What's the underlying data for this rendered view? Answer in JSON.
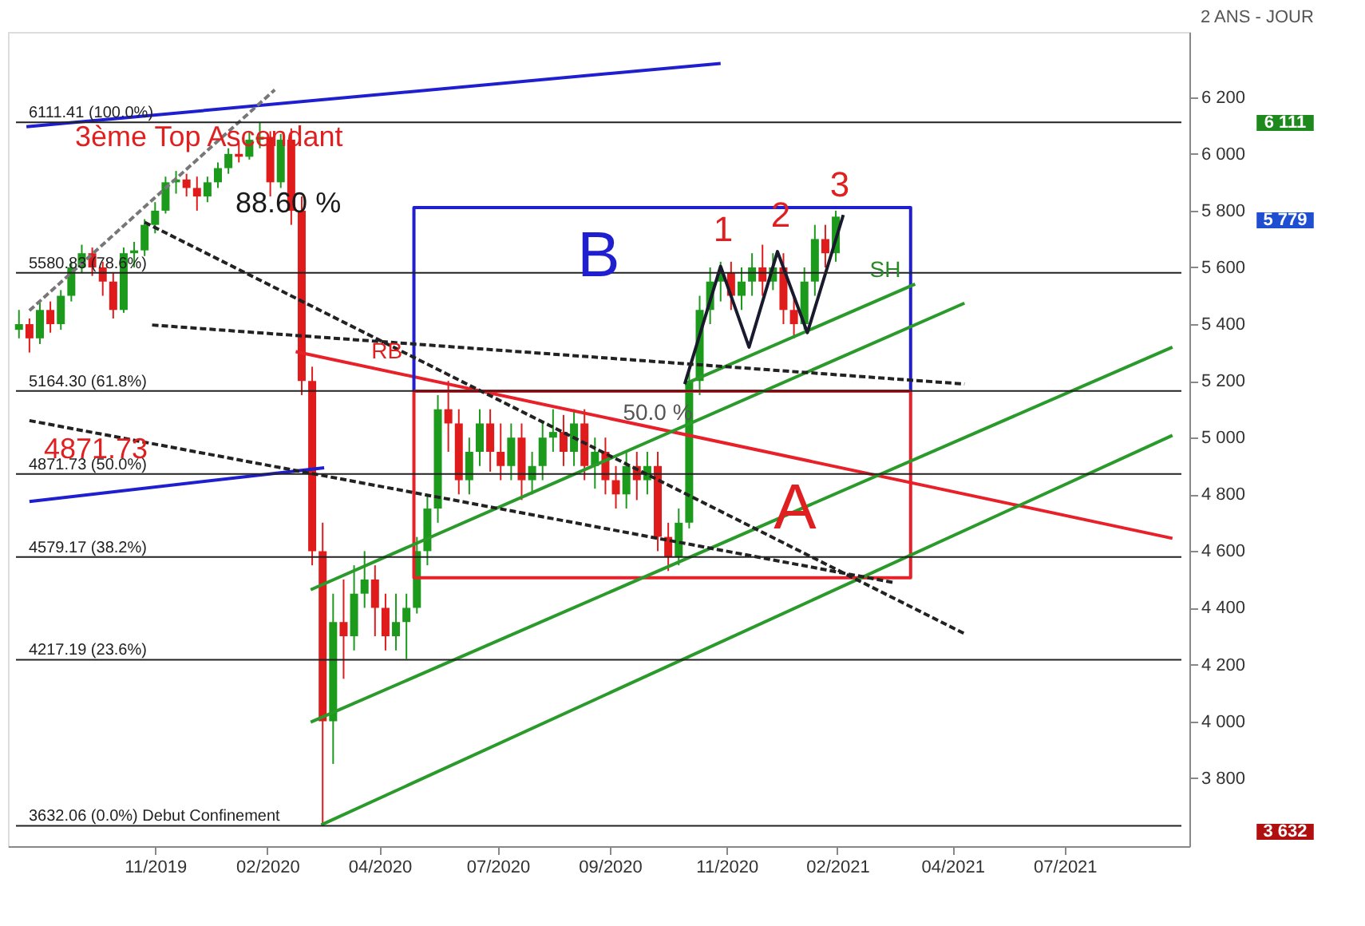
{
  "chart_data": {
    "type": "candlestick",
    "subtitle": "2 ANS - JOUR",
    "x": [
      "2019-08-02",
      "2019-08-09",
      "2019-08-16",
      "2019-08-23",
      "2019-08-30",
      "2019-09-06",
      "2019-09-13",
      "2019-09-20",
      "2019-09-27",
      "2019-10-04",
      "2019-10-11",
      "2019-10-18",
      "2019-10-25",
      "2019-11-01",
      "2019-11-08",
      "2019-11-15",
      "2019-11-22",
      "2019-11-29",
      "2019-12-06",
      "2019-12-13",
      "2019-12-20",
      "2019-12-27",
      "2020-01-03",
      "2020-01-10",
      "2020-01-17",
      "2020-01-24",
      "2020-01-31",
      "2020-02-07",
      "2020-02-14",
      "2020-02-21",
      "2020-02-28",
      "2020-03-06",
      "2020-03-13",
      "2020-03-20",
      "2020-03-27",
      "2020-04-03",
      "2020-04-10",
      "2020-04-17",
      "2020-04-24",
      "2020-05-01",
      "2020-05-08",
      "2020-05-15",
      "2020-05-22",
      "2020-05-29",
      "2020-06-05",
      "2020-06-12",
      "2020-06-19",
      "2020-06-26",
      "2020-07-03",
      "2020-07-10",
      "2020-07-17",
      "2020-07-24",
      "2020-07-31",
      "2020-08-07",
      "2020-08-14",
      "2020-08-21",
      "2020-08-28",
      "2020-09-04",
      "2020-09-11",
      "2020-09-18",
      "2020-09-25",
      "2020-10-02",
      "2020-10-09",
      "2020-10-16",
      "2020-10-23",
      "2020-10-30",
      "2020-11-06",
      "2020-11-13",
      "2020-11-20",
      "2020-11-27",
      "2020-12-04",
      "2020-12-11",
      "2020-12-18",
      "2020-12-25",
      "2021-01-01",
      "2021-01-08",
      "2021-01-15",
      "2021-01-22",
      "2021-01-29"
    ],
    "ohlc": [
      [
        5380,
        5450,
        5350,
        5400
      ],
      [
        5400,
        5420,
        5300,
        5350
      ],
      [
        5350,
        5480,
        5330,
        5450
      ],
      [
        5450,
        5480,
        5370,
        5400
      ],
      [
        5400,
        5520,
        5380,
        5500
      ],
      [
        5500,
        5620,
        5480,
        5600
      ],
      [
        5600,
        5680,
        5580,
        5650
      ],
      [
        5650,
        5670,
        5570,
        5600
      ],
      [
        5600,
        5620,
        5500,
        5550
      ],
      [
        5550,
        5580,
        5420,
        5450
      ],
      [
        5450,
        5670,
        5440,
        5650
      ],
      [
        5650,
        5690,
        5600,
        5660
      ],
      [
        5660,
        5770,
        5640,
        5750
      ],
      [
        5750,
        5830,
        5720,
        5800
      ],
      [
        5800,
        5920,
        5790,
        5900
      ],
      [
        5900,
        5940,
        5860,
        5910
      ],
      [
        5910,
        5930,
        5850,
        5880
      ],
      [
        5880,
        5920,
        5800,
        5850
      ],
      [
        5850,
        5920,
        5830,
        5900
      ],
      [
        5900,
        5970,
        5880,
        5950
      ],
      [
        5950,
        6020,
        5930,
        6000
      ],
      [
        6000,
        6040,
        5970,
        5990
      ],
      [
        5990,
        6080,
        5980,
        6050
      ],
      [
        6050,
        6111,
        6020,
        6060
      ],
      [
        6060,
        6080,
        5850,
        5900
      ],
      [
        5900,
        6070,
        5880,
        6050
      ],
      [
        6050,
        6090,
        5750,
        5800
      ],
      [
        5800,
        5850,
        5150,
        5200
      ],
      [
        5200,
        5250,
        4550,
        4600
      ],
      [
        4600,
        4700,
        3632,
        4000
      ],
      [
        4000,
        4450,
        3850,
        4350
      ],
      [
        4350,
        4500,
        4150,
        4300
      ],
      [
        4300,
        4550,
        4250,
        4450
      ],
      [
        4450,
        4600,
        4400,
        4500
      ],
      [
        4500,
        4550,
        4300,
        4400
      ],
      [
        4400,
        4450,
        4250,
        4300
      ],
      [
        4300,
        4450,
        4250,
        4350
      ],
      [
        4350,
        4450,
        4220,
        4400
      ],
      [
        4400,
        4650,
        4380,
        4600
      ],
      [
        4600,
        4800,
        4550,
        4750
      ],
      [
        4750,
        5150,
        4700,
        5100
      ],
      [
        5100,
        5200,
        4950,
        5050
      ],
      [
        5050,
        5100,
        4800,
        4850
      ],
      [
        4850,
        5000,
        4800,
        4950
      ],
      [
        4950,
        5100,
        4900,
        5050
      ],
      [
        5050,
        5100,
        4880,
        4950
      ],
      [
        4950,
        5050,
        4850,
        4900
      ],
      [
        4900,
        5050,
        4850,
        5000
      ],
      [
        5000,
        5050,
        4780,
        4850
      ],
      [
        4850,
        4950,
        4800,
        4900
      ],
      [
        4900,
        5050,
        4850,
        5000
      ],
      [
        5000,
        5100,
        4950,
        5020
      ],
      [
        5020,
        5080,
        4900,
        4950
      ],
      [
        4950,
        5100,
        4900,
        5050
      ],
      [
        5050,
        5100,
        4850,
        4900
      ],
      [
        4900,
        5000,
        4820,
        4950
      ],
      [
        4950,
        5000,
        4800,
        4850
      ],
      [
        4850,
        4900,
        4750,
        4800
      ],
      [
        4800,
        4950,
        4750,
        4900
      ],
      [
        4900,
        4950,
        4780,
        4850
      ],
      [
        4850,
        4950,
        4800,
        4900
      ],
      [
        4900,
        4950,
        4600,
        4650
      ],
      [
        4650,
        4700,
        4530,
        4580
      ],
      [
        4580,
        4750,
        4550,
        4700
      ],
      [
        4700,
        5250,
        4680,
        5200
      ],
      [
        5200,
        5500,
        5150,
        5450
      ],
      [
        5450,
        5600,
        5400,
        5550
      ],
      [
        5550,
        5620,
        5480,
        5580
      ],
      [
        5580,
        5620,
        5450,
        5500
      ],
      [
        5500,
        5600,
        5450,
        5550
      ],
      [
        5550,
        5650,
        5500,
        5600
      ],
      [
        5600,
        5680,
        5500,
        5550
      ],
      [
        5550,
        5650,
        5520,
        5600
      ],
      [
        5600,
        5650,
        5400,
        5450
      ],
      [
        5450,
        5500,
        5350,
        5400
      ],
      [
        5400,
        5600,
        5380,
        5550
      ],
      [
        5550,
        5750,
        5500,
        5700
      ],
      [
        5700,
        5750,
        5600,
        5650
      ],
      [
        5650,
        5800,
        5620,
        5779
      ]
    ],
    "series": [
      {
        "type": "line",
        "color": "#1f1fd0",
        "x": [
          "2019-08-07",
          "2020-11-13"
        ],
        "values": [
          6096,
          6319
        ]
      },
      {
        "type": "line",
        "color": "#1f1fd0",
        "x": [
          "2019-08-09",
          "2020-02-22"
        ],
        "values": [
          4775,
          4894
        ]
      },
      {
        "type": "line",
        "color": "#e8202a",
        "x": [
          "2020-02-03",
          "2021-09-11"
        ],
        "values": [
          5303,
          4645
        ]
      },
      {
        "type": "line",
        "color": "#1f1fd0",
        "x": [
          "2020-04-22",
          "2020-04-22",
          "2021-03-20",
          "2021-03-20"
        ],
        "values": [
          5164,
          5811,
          5811,
          5164
        ]
      },
      {
        "type": "line",
        "color": "#e8202a",
        "x": [
          "2020-04-22",
          "2020-04-22",
          "2021-03-20",
          "2021-03-20"
        ],
        "values": [
          5164,
          4506,
          4506,
          5164
        ]
      },
      {
        "type": "line",
        "color": "#e8202a",
        "x": [
          "2020-04-22",
          "2021-03-20"
        ],
        "values": [
          5164,
          5164
        ]
      },
      {
        "type": "line",
        "color": "#2a9a2a",
        "x": [
          "2020-02-20",
          "2021-09-11"
        ],
        "values": [
          3635,
          5008
        ]
      },
      {
        "type": "line",
        "color": "#2a9a2a",
        "x": [
          "2020-02-13",
          "2021-09-11"
        ],
        "values": [
          3997,
          5319
        ]
      },
      {
        "type": "line",
        "color": "#2a9a2a",
        "x": [
          "2020-02-13",
          "2021-04-25"
        ],
        "values": [
          4464,
          5474
        ]
      },
      {
        "type": "line",
        "color": "#2a9a2a",
        "x": [
          "2020-10-20",
          "2021-03-23"
        ],
        "values": [
          5189,
          5541
        ]
      },
      {
        "type": "line",
        "color": "#1a1a2e",
        "x": [
          "2020-10-20",
          "2020-11-13",
          "2020-12-02",
          "2020-12-21",
          "2021-01-10",
          "2021-02-03"
        ],
        "values": [
          5189,
          5604,
          5319,
          5656,
          5370,
          5785
        ]
      },
      {
        "type": "line",
        "color": "#222222",
        "line_style": "dashed",
        "x": [
          "2019-10-25",
          "2021-04-25"
        ],
        "values": [
          5759,
          4309
        ]
      },
      {
        "type": "line",
        "color": "#222222",
        "line_style": "dashed",
        "x": [
          "2019-10-30",
          "2021-04-25"
        ],
        "values": [
          5397,
          5189
        ]
      },
      {
        "type": "line",
        "color": "#222222",
        "line_style": "dashed",
        "x": [
          "2019-08-09",
          "2021-03-08"
        ],
        "values": [
          5060,
          4490
        ]
      },
      {
        "type": "line",
        "color": "#777777",
        "line_style": "dashed",
        "x": [
          "2019-08-09",
          "2020-01-20"
        ],
        "values": [
          5448,
          6226
        ]
      }
    ],
    "ref_lines": [
      {
        "axis": "y",
        "value": 6111.41,
        "label": "6111.41  (100.0%)",
        "color": "#222222"
      },
      {
        "axis": "y",
        "value": 5580.83,
        "label": "5580.83  (78.6%)",
        "color": "#222222"
      },
      {
        "axis": "y",
        "value": 5164.3,
        "label": "5164.30  (61.8%)",
        "color": "#222222"
      },
      {
        "axis": "y",
        "value": 4871.73,
        "label": "4871.73  (50.0%)",
        "color": "#222222"
      },
      {
        "axis": "y",
        "value": 4579.17,
        "label": "4579.17  (38.2%)",
        "color": "#222222"
      },
      {
        "axis": "y",
        "value": 4217.19,
        "label": "4217.19  (23.6%)",
        "color": "#222222"
      },
      {
        "axis": "y",
        "value": 3632.06,
        "label": "3632.06  (0.0%)  Debut Confinement",
        "color": "#222222"
      }
    ],
    "annotations": [
      {
        "text": "3ème Top Ascendant",
        "x": "2019-12-07",
        "y": 6055
      },
      {
        "text": "88.60 %",
        "x": "2020-01-29",
        "y": 5822
      },
      "B",
      "A",
      {
        "text": "RB",
        "x": "2020-04-04",
        "y": 5303
      },
      {
        "text": "SH",
        "x": "2021-03-03",
        "y": 5589
      },
      "1",
      "2",
      "3",
      "4871.73",
      "50.0 %",
      "6 111",
      "5 779",
      "3 632"
    ],
    "xlim": [
      "2019-07-31",
      "2021-09-17"
    ],
    "xticks": [
      {
        "value": "2019-11-01",
        "label": "11/2019"
      },
      {
        "value": "2020-01-15",
        "label": "02/2020"
      },
      {
        "value": "2020-03-30",
        "label": "04/2020"
      },
      {
        "value": "2020-06-17",
        "label": "07/2020"
      },
      {
        "value": "2020-08-31",
        "label": "09/2020"
      },
      {
        "value": "2020-11-17",
        "label": "11/2020"
      },
      {
        "value": "2021-01-30",
        "label": "02/2021"
      },
      {
        "value": "2021-04-17",
        "label": "04/2021"
      },
      {
        "value": "2021-07-01",
        "label": "07/2021"
      }
    ],
    "ylim": [
      3560,
      6430
    ],
    "yticks": [
      {
        "value": 3800,
        "label": "3 800"
      },
      {
        "value": 4000,
        "label": "4 000"
      },
      {
        "value": 4200,
        "label": "4 200"
      },
      {
        "value": 4400,
        "label": "4 400"
      },
      {
        "value": 4600,
        "label": "4 600"
      },
      {
        "value": 4800,
        "label": "4 800"
      },
      {
        "value": 5000,
        "label": "5 000"
      },
      {
        "value": 5200,
        "label": "5 200"
      },
      {
        "value": 5400,
        "label": "5 400"
      },
      {
        "value": 5600,
        "label": "5 600"
      },
      {
        "value": 5800,
        "label": "5 800"
      },
      {
        "value": 6000,
        "label": "6 000"
      },
      {
        "value": 6200,
        "label": "6 200"
      }
    ],
    "grid": false
  }
}
